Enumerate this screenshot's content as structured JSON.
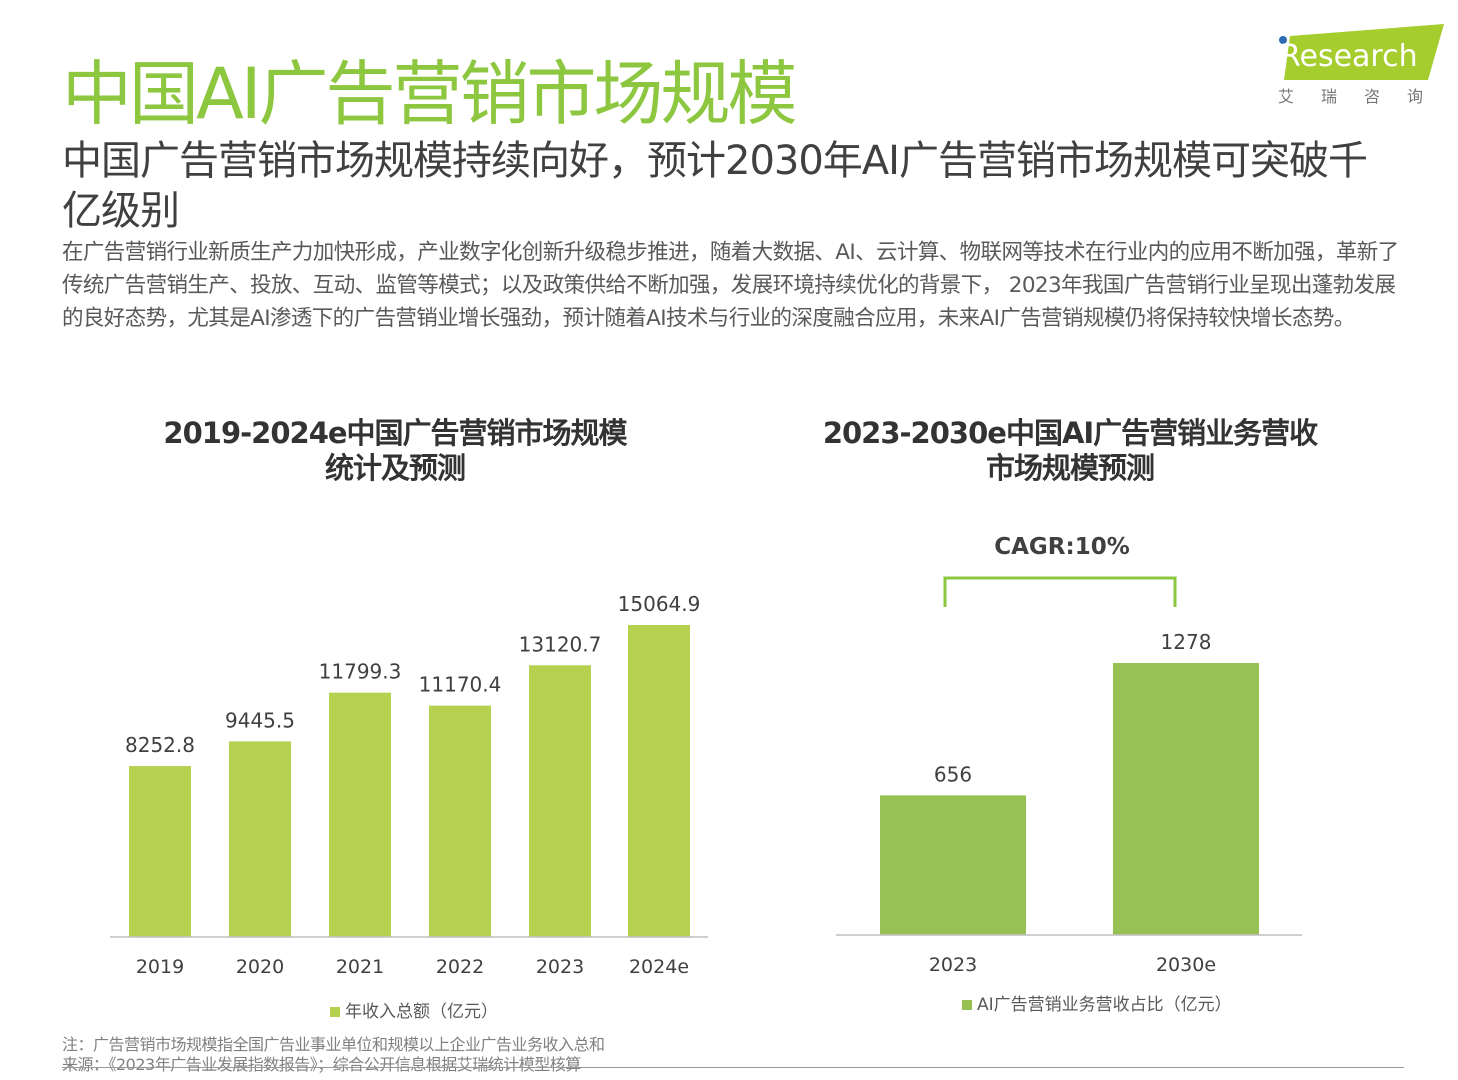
{
  "title": "中国AI广告营销市场规模",
  "subtitle": "中国广告营销市场规模持续向好，预计2030年AI广告营销市场规模可突破千亿级别",
  "body": "在广告营销行业新质生产力加快形成，产业数字化创新升级稳步推进，随着大数据、AI、云计算、物联网等技术在行业内的应用不断加强，革新了传统广告营销生产、投放、互动、监管等模式；以及政策供给不断加强，发展环境持续优化的背景下， 2023年我国广告营销行业呈现出蓬勃发展的良好态势，尤其是AI渗透下的广告营销业增长强劲，预计随着AI技术与行业的深度融合应用，未来AI广告营销规模仍将保持较快增长态势。",
  "logo": {
    "brand": "iResearch",
    "cn": "艾 瑞 咨 询"
  },
  "chart_data": [
    {
      "type": "bar",
      "title": "2019-2024e中国广告营销市场规模\n统计及预测",
      "categories": [
        "2019",
        "2020",
        "2021",
        "2022",
        "2023",
        "2024e"
      ],
      "values": [
        8252.8,
        9445.5,
        11799.3,
        11170.4,
        13120.7,
        15064.9
      ],
      "labels": [
        "8252.8",
        "9445.5",
        "11799.3",
        "11170.4",
        "13120.7",
        "15064.9"
      ],
      "legend": "年收入总额（亿元）",
      "legend_placement": "bottom",
      "color": "#b5d14f",
      "grid": false,
      "ylim": [
        0,
        15064.9
      ]
    },
    {
      "type": "bar",
      "title": "2023-2030e中国AI广告营销业务营收\n市场规模预测",
      "categories": [
        "2023",
        "2030e"
      ],
      "values": [
        656,
        1278
      ],
      "labels": [
        "656",
        "1278"
      ],
      "legend": "AI广告营销业务营收占比（亿元）",
      "legend_placement": "bottom",
      "color": "#97c253",
      "grid": false,
      "annotation": "CAGR:10%",
      "ylim": [
        0,
        1278
      ]
    }
  ],
  "notes": {
    "note": "注：广告营销市场规模指全国广告业事业单位和规模以上企业广告业务收入总和",
    "source": "来源：《2023年广告业发展指数报告》；综合公开信息根据艾瑞统计模型核算"
  }
}
